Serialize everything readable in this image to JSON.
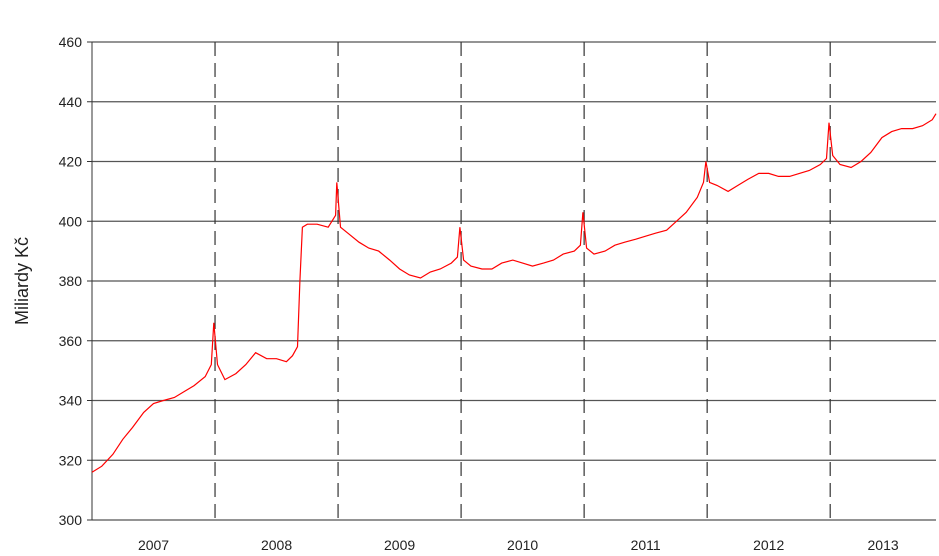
{
  "chart_data": {
    "type": "line",
    "title": "",
    "xlabel": "",
    "ylabel": "Miliardy Kč",
    "ylim": [
      300,
      460
    ],
    "yticks": [
      300,
      320,
      340,
      360,
      380,
      400,
      420,
      440,
      460
    ],
    "xlim": [
      2007.0,
      2013.86
    ],
    "xtick_labels": [
      "2007",
      "2008",
      "2009",
      "2010",
      "2011",
      "2012",
      "2013"
    ],
    "year_boundaries": [
      2008.0,
      2009.0,
      2010.0,
      2011.0,
      2012.0,
      2013.0
    ],
    "grid": {
      "horizontal": "solid",
      "vertical": "dashed at year boundaries"
    },
    "legend": "none",
    "line_color": "#ff0000",
    "series": [
      {
        "values": [
          [
            2007.0,
            316
          ],
          [
            2007.08,
            318
          ],
          [
            2007.17,
            322
          ],
          [
            2007.25,
            327
          ],
          [
            2007.33,
            331
          ],
          [
            2007.42,
            336
          ],
          [
            2007.5,
            339
          ],
          [
            2007.58,
            340
          ],
          [
            2007.67,
            341
          ],
          [
            2007.75,
            343
          ],
          [
            2007.83,
            345
          ],
          [
            2007.92,
            348
          ],
          [
            2007.97,
            352
          ],
          [
            2007.99,
            366
          ],
          [
            2008.02,
            352
          ],
          [
            2008.08,
            347
          ],
          [
            2008.17,
            349
          ],
          [
            2008.25,
            352
          ],
          [
            2008.33,
            356
          ],
          [
            2008.42,
            354
          ],
          [
            2008.5,
            354
          ],
          [
            2008.58,
            353
          ],
          [
            2008.63,
            355
          ],
          [
            2008.67,
            358
          ],
          [
            2008.69,
            380
          ],
          [
            2008.71,
            398
          ],
          [
            2008.75,
            399
          ],
          [
            2008.83,
            399
          ],
          [
            2008.92,
            398
          ],
          [
            2008.98,
            402
          ],
          [
            2008.99,
            413
          ],
          [
            2009.02,
            398
          ],
          [
            2009.08,
            396
          ],
          [
            2009.17,
            393
          ],
          [
            2009.25,
            391
          ],
          [
            2009.33,
            390
          ],
          [
            2009.42,
            387
          ],
          [
            2009.5,
            384
          ],
          [
            2009.58,
            382
          ],
          [
            2009.67,
            381
          ],
          [
            2009.75,
            383
          ],
          [
            2009.83,
            384
          ],
          [
            2009.92,
            386
          ],
          [
            2009.97,
            388
          ],
          [
            2009.99,
            398
          ],
          [
            2010.02,
            387
          ],
          [
            2010.08,
            385
          ],
          [
            2010.17,
            384
          ],
          [
            2010.25,
            384
          ],
          [
            2010.33,
            386
          ],
          [
            2010.42,
            387
          ],
          [
            2010.5,
            386
          ],
          [
            2010.58,
            385
          ],
          [
            2010.67,
            386
          ],
          [
            2010.75,
            387
          ],
          [
            2010.83,
            389
          ],
          [
            2010.92,
            390
          ],
          [
            2010.97,
            392
          ],
          [
            2010.99,
            403
          ],
          [
            2011.02,
            391
          ],
          [
            2011.08,
            389
          ],
          [
            2011.17,
            390
          ],
          [
            2011.25,
            392
          ],
          [
            2011.33,
            393
          ],
          [
            2011.42,
            394
          ],
          [
            2011.5,
            395
          ],
          [
            2011.58,
            396
          ],
          [
            2011.67,
            397
          ],
          [
            2011.75,
            400
          ],
          [
            2011.83,
            403
          ],
          [
            2011.92,
            408
          ],
          [
            2011.97,
            413
          ],
          [
            2011.99,
            420
          ],
          [
            2012.02,
            413
          ],
          [
            2012.08,
            412
          ],
          [
            2012.17,
            410
          ],
          [
            2012.25,
            412
          ],
          [
            2012.33,
            414
          ],
          [
            2012.42,
            416
          ],
          [
            2012.5,
            416
          ],
          [
            2012.58,
            415
          ],
          [
            2012.67,
            415
          ],
          [
            2012.75,
            416
          ],
          [
            2012.83,
            417
          ],
          [
            2012.92,
            419
          ],
          [
            2012.97,
            421
          ],
          [
            2012.99,
            433
          ],
          [
            2013.02,
            422
          ],
          [
            2013.08,
            419
          ],
          [
            2013.17,
            418
          ],
          [
            2013.25,
            420
          ],
          [
            2013.33,
            423
          ],
          [
            2013.42,
            428
          ],
          [
            2013.5,
            430
          ],
          [
            2013.58,
            431
          ],
          [
            2013.67,
            431
          ],
          [
            2013.75,
            432
          ],
          [
            2013.83,
            434
          ],
          [
            2013.86,
            436
          ]
        ]
      }
    ]
  }
}
